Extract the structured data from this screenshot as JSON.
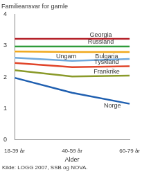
{
  "chart_data": {
    "type": "line",
    "y_label": "Familieansvar for gamle",
    "x_label": "Alder",
    "source": "Kilde: LOGG 2007, SSB og NOVA.",
    "categories": [
      "18-39 år",
      "40-59 år",
      "60-79 år"
    ],
    "series": [
      {
        "name": "Georgia",
        "color": "#b5222a",
        "values": [
          3.22,
          3.22,
          3.22
        ]
      },
      {
        "name": "Russland",
        "color": "#2e9b3a",
        "values": [
          2.98,
          2.98,
          2.98
        ]
      },
      {
        "name": "Bulgaria",
        "color": "#f0a81c",
        "values": [
          2.82,
          2.8,
          2.8
        ]
      },
      {
        "name": "Ungarn",
        "color": "#6fa8dc",
        "values": [
          2.62,
          2.52,
          2.58
        ]
      },
      {
        "name": "Tyskland",
        "color": "#e0452a",
        "values": [
          2.45,
          2.32,
          2.35
        ]
      },
      {
        "name": "Frankrike",
        "color": "#8a9a2a",
        "values": [
          2.22,
          2.02,
          2.05
        ]
      },
      {
        "name": "Norge",
        "color": "#1f5fb0",
        "values": [
          1.98,
          1.5,
          1.15
        ]
      }
    ],
    "ylim": [
      0,
      4
    ],
    "yticks": [
      0,
      1,
      2,
      3,
      4
    ],
    "grid": false
  }
}
